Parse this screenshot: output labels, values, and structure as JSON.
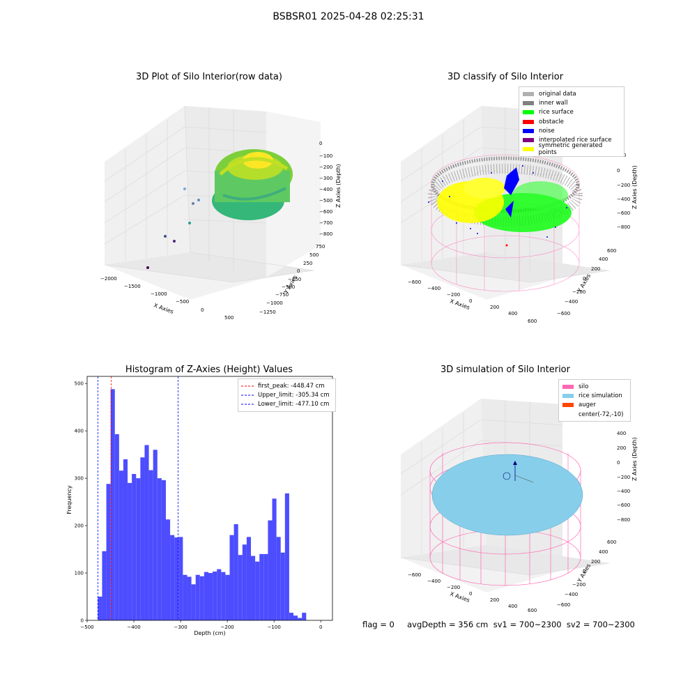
{
  "suptitle": "BSBSR01 2025-04-28 02:25:31",
  "footer": "flag = 0     avgDepth = 356 cm  sv1 = 700~2300  sv2 = 700~2300",
  "panels": {
    "raw": {
      "title": "3D Plot of Silo Interior(row data)",
      "xlabel": "X Axies",
      "ylabel": "Y Axies",
      "zlabel": "Z Axies (Depth)",
      "xticks": [
        "−2000",
        "−1500",
        "−1000",
        "−500",
        "0",
        "500"
      ],
      "yticks": [
        "750",
        "500",
        "250",
        "0",
        "−250",
        "−500",
        "−750",
        "−1000",
        "−1250"
      ],
      "zticks": [
        "0",
        "−100",
        "−200",
        "−300",
        "−400",
        "−500",
        "−600",
        "−700",
        "−800"
      ]
    },
    "classify": {
      "title": "3D classify of Silo Interior",
      "xlabel": "X Axies",
      "ylabel": "Y Axies",
      "zlabel": "Z Axies (Depth)",
      "xticks": [
        "−600",
        "−400",
        "−200",
        "0",
        "200",
        "400",
        "600"
      ],
      "yticks": [
        "600",
        "400",
        "200",
        "0",
        "−200",
        "−400",
        "−600"
      ],
      "zticks": [
        "200",
        "0",
        "−200",
        "−400",
        "−600",
        "−800"
      ],
      "legend": [
        {
          "label": "original data",
          "color": "#b0b0b0"
        },
        {
          "label": "inner wall",
          "color": "#808080"
        },
        {
          "label": "rice surface",
          "color": "#00ff00"
        },
        {
          "label": "obstacle",
          "color": "#ff0000"
        },
        {
          "label": "noise",
          "color": "#0000ff"
        },
        {
          "label": "interpolated rice surface",
          "color": "#800080"
        },
        {
          "label": "symmetric generated points",
          "color": "#ffff00"
        }
      ]
    },
    "simulation": {
      "title": "3D simulation of Silo Interior",
      "xlabel": "X Axies",
      "ylabel": "Y Axies",
      "zlabel": "Z Axies (Depth)",
      "xticks": [
        "−600",
        "−400",
        "−200",
        "0",
        "200",
        "400",
        "600"
      ],
      "yticks": [
        "600",
        "400",
        "200",
        "0",
        "−200",
        "−400",
        "−600"
      ],
      "zticks": [
        "400",
        "200",
        "0",
        "−200",
        "−400",
        "−600",
        "−800"
      ],
      "legend": [
        {
          "label": "silo",
          "color": "#ff69b4"
        },
        {
          "label": "rice simulation",
          "color": "#87ceeb"
        },
        {
          "label": "auger",
          "color": "#ff4500"
        },
        {
          "label": "center(-72,-10)",
          "color": ""
        }
      ]
    }
  },
  "chart_data": [
    {
      "type": "bar",
      "title": "Histogram of Z-Axies (Height) Values",
      "xlabel": "Depth (cm)",
      "ylabel": "Frequency",
      "xlim": [
        -500,
        25
      ],
      "ylim": [
        0,
        515
      ],
      "xticks": [
        -500,
        -400,
        -300,
        -200,
        -100,
        0
      ],
      "yticks": [
        0,
        100,
        200,
        300,
        400,
        500
      ],
      "bar_color": "#4d4dff",
      "bin_start": -477.1,
      "bin_width": 9.1,
      "values": [
        50,
        146,
        288,
        488,
        393,
        316,
        340,
        290,
        309,
        300,
        344,
        370,
        317,
        360,
        300,
        296,
        213,
        180,
        175,
        176,
        96,
        92,
        76,
        96,
        93,
        102,
        100,
        103,
        108,
        102,
        96,
        180,
        203,
        138,
        160,
        176,
        136,
        124,
        140,
        140,
        211,
        257,
        176,
        143,
        268,
        16,
        10,
        5,
        16
      ],
      "vlines": [
        {
          "label": "first_peak: -448.47 cm",
          "x": -448.47,
          "color": "#ff0000"
        },
        {
          "label": "Upper_limit: -305.34 cm",
          "x": -305.34,
          "color": "#0000ff"
        },
        {
          "label": "Lower_limit: -477.10 cm",
          "x": -477.1,
          "color": "#0000ff"
        }
      ]
    }
  ]
}
